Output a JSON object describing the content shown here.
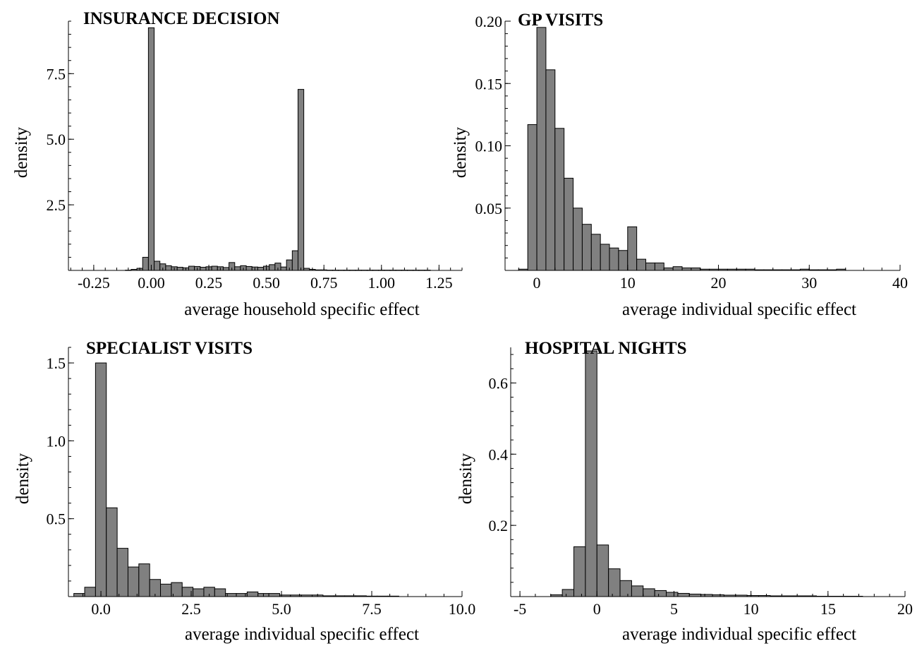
{
  "chart_data": [
    {
      "type": "bar",
      "title": "INSURANCE DECISION",
      "xlabel": "average household specific effect",
      "ylabel": "density",
      "xlim": [
        -0.36,
        1.35
      ],
      "ylim": [
        0,
        9.5
      ],
      "xticks": [
        "-0.25",
        "0.00",
        "0.25",
        "0.50",
        "0.75",
        "1.00",
        "1.25"
      ],
      "yticks": [
        "2.5",
        "5.0",
        "7.5"
      ],
      "bin_width": 0.025,
      "bin_centers": [
        -0.1,
        -0.075,
        -0.05,
        -0.025,
        0.0,
        0.025,
        0.05,
        0.075,
        0.1,
        0.125,
        0.15,
        0.175,
        0.2,
        0.225,
        0.25,
        0.275,
        0.3,
        0.325,
        0.35,
        0.375,
        0.4,
        0.425,
        0.45,
        0.475,
        0.5,
        0.525,
        0.55,
        0.575,
        0.6,
        0.625,
        0.65,
        0.675,
        0.7,
        0.725,
        0.75,
        0.775,
        0.8,
        0.825,
        0.85,
        0.875,
        0.9,
        0.925,
        0.95,
        0.975,
        1.0,
        1.025,
        1.05,
        1.075,
        1.1,
        1.125,
        1.15,
        1.175,
        1.2
      ],
      "values": [
        0.01,
        0.04,
        0.08,
        0.5,
        9.25,
        0.35,
        0.25,
        0.18,
        0.14,
        0.12,
        0.1,
        0.16,
        0.15,
        0.12,
        0.14,
        0.16,
        0.14,
        0.11,
        0.3,
        0.14,
        0.18,
        0.15,
        0.13,
        0.12,
        0.16,
        0.22,
        0.28,
        0.13,
        0.4,
        0.75,
        6.9,
        0.08,
        0.04,
        0.02,
        0.02,
        0.01,
        0.01,
        0.01,
        0.01,
        0.01,
        0.01,
        0.01,
        0.01,
        0.01,
        0.01,
        0.01,
        0.01,
        0.01,
        0.01,
        0.01,
        0.01,
        0.01,
        0.01
      ]
    },
    {
      "type": "bar",
      "title": "GP VISITS",
      "xlabel": "average individual specific effect",
      "ylabel": "density",
      "xlim": [
        -3.5,
        40
      ],
      "ylim": [
        0,
        0.2
      ],
      "xticks": [
        "0",
        "10",
        "20",
        "30",
        "40"
      ],
      "yticks": [
        "0.05",
        "0.10",
        "0.15",
        "0.20"
      ],
      "bin_width": 1,
      "bin_centers": [
        -1.5,
        -0.5,
        0.5,
        1.5,
        2.5,
        3.5,
        4.5,
        5.5,
        6.5,
        7.5,
        8.5,
        9.5,
        10.5,
        11.5,
        12.5,
        13.5,
        14.5,
        15.5,
        16.5,
        17.5,
        18.5,
        19.5,
        20.5,
        21.5,
        22.5,
        23.5,
        24.5,
        25.5,
        26.5,
        27.5,
        28.5,
        29.5,
        30.5,
        31.5,
        32.5,
        33.5
      ],
      "values": [
        0.001,
        0.117,
        0.195,
        0.161,
        0.114,
        0.074,
        0.05,
        0.037,
        0.029,
        0.021,
        0.018,
        0.016,
        0.035,
        0.009,
        0.006,
        0.006,
        0.002,
        0.003,
        0.002,
        0.002,
        0.001,
        0.001,
        0.001,
        0.001,
        0.001,
        0.001,
        0.0005,
        0.0005,
        0.0005,
        0.0005,
        0.0005,
        0.001,
        0.0005,
        0.0005,
        0.0005,
        0.001
      ]
    },
    {
      "type": "bar",
      "title": "SPECIALIST VISITS",
      "xlabel": "average individual specific effect",
      "ylabel": "density",
      "xlim": [
        -0.9,
        10.0
      ],
      "ylim": [
        0,
        1.6
      ],
      "xticks": [
        "0.0",
        "2.5",
        "5.0",
        "7.5",
        "10.0"
      ],
      "yticks": [
        "0.5",
        "1.0",
        "1.5"
      ],
      "bin_width": 0.3,
      "bin_centers": [
        -0.6,
        -0.3,
        0.0,
        0.3,
        0.6,
        0.9,
        1.2,
        1.5,
        1.8,
        2.1,
        2.4,
        2.7,
        3.0,
        3.3,
        3.6,
        3.9,
        4.2,
        4.5,
        4.8,
        5.1,
        5.4,
        5.7,
        6.0,
        6.3,
        6.6,
        6.9,
        7.2,
        7.5,
        7.8,
        8.1
      ],
      "values": [
        0.02,
        0.06,
        1.5,
        0.57,
        0.31,
        0.19,
        0.21,
        0.11,
        0.08,
        0.09,
        0.06,
        0.05,
        0.06,
        0.05,
        0.02,
        0.02,
        0.03,
        0.02,
        0.02,
        0.01,
        0.01,
        0.01,
        0.01,
        0.005,
        0.005,
        0.005,
        0.005,
        0.003,
        0.003,
        0.003
      ]
    },
    {
      "type": "bar",
      "title": "HOSPITAL NIGHTS",
      "xlabel": "average individual specific effect",
      "ylabel": "density",
      "xlim": [
        -5.6,
        20
      ],
      "ylim": [
        0,
        0.7
      ],
      "xticks": [
        "-5",
        "0",
        "5",
        "10",
        "15",
        "20"
      ],
      "yticks": [
        "0.2",
        "0.4",
        "0.6"
      ],
      "bin_width": 0.75,
      "bin_centers": [
        -2.625,
        -1.875,
        -1.125,
        -0.375,
        0.375,
        1.125,
        1.875,
        2.625,
        3.375,
        4.125,
        4.875,
        5.625,
        6.375,
        7.125,
        7.875,
        8.625,
        9.375,
        10.125,
        10.875,
        11.625,
        12.375,
        13.125,
        13.875,
        14.625,
        15.375,
        16.125,
        16.875
      ],
      "values": [
        0.005,
        0.02,
        0.14,
        0.69,
        0.145,
        0.078,
        0.045,
        0.03,
        0.022,
        0.017,
        0.012,
        0.009,
        0.007,
        0.006,
        0.005,
        0.004,
        0.004,
        0.003,
        0.003,
        0.002,
        0.002,
        0.002,
        0.002,
        0.001,
        0.001,
        0.001,
        0.001
      ]
    }
  ]
}
